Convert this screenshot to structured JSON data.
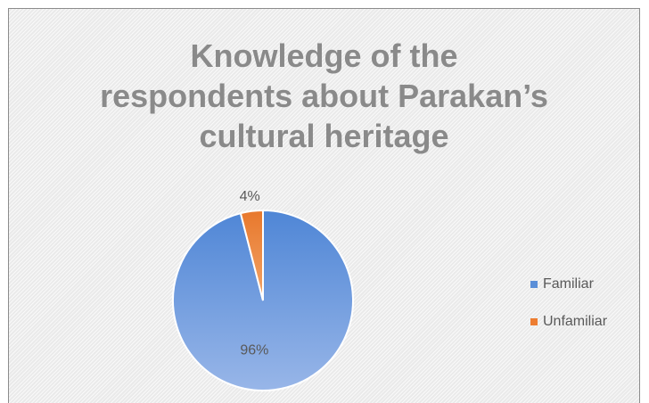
{
  "chart_data": {
    "type": "pie",
    "title": "Knowledge of the\nrespondents about Parakan’s\ncultural heritage",
    "slices": [
      {
        "label": "Familiar",
        "value": 96,
        "data_label": "96%",
        "color": "#5b8fd8"
      },
      {
        "label": "Unfamiliar",
        "value": 4,
        "data_label": "4%",
        "color": "#ed7d31"
      }
    ],
    "legend_position": "right"
  }
}
